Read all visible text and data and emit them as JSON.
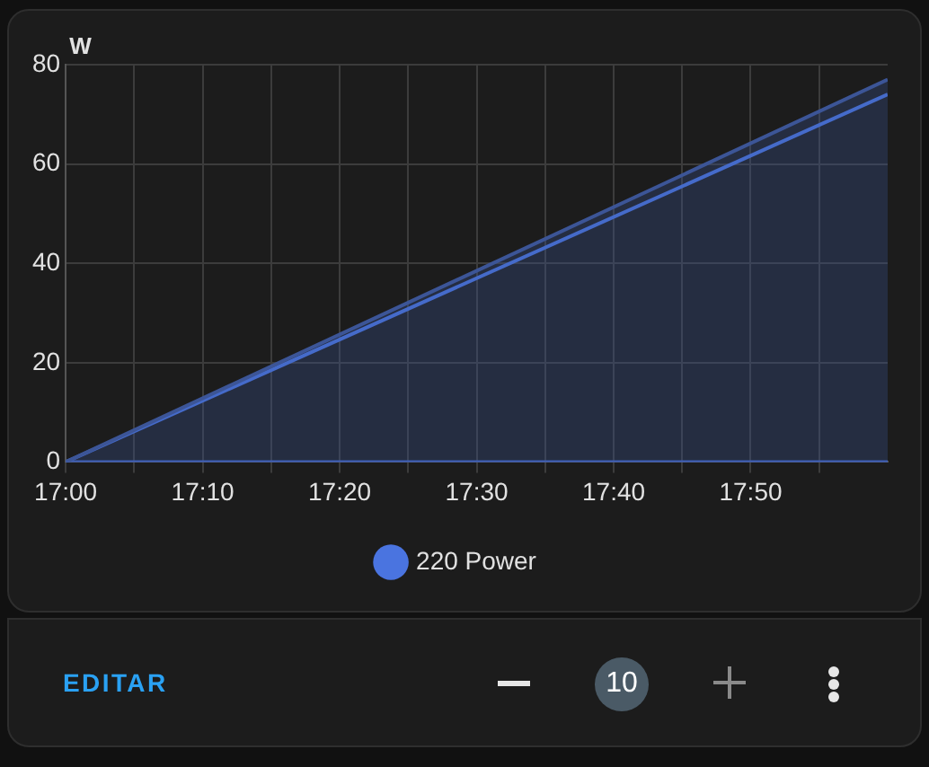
{
  "chart_data": {
    "type": "line",
    "ylabel": "W",
    "x": [
      17,
      18
    ],
    "series": [
      {
        "type": "area",
        "color": "#3c5597",
        "values": [
          0,
          77
        ]
      },
      {
        "name": "220 Power",
        "color": "#4a74e0",
        "values": [
          0,
          74
        ]
      },
      {
        "color": "#3f63c8",
        "values": [
          0,
          0
        ]
      }
    ],
    "xlim": [
      17,
      18
    ],
    "xticks": [
      {
        "value": 17,
        "label": "17:00"
      },
      {
        "value": 17.0833,
        "label": null
      },
      {
        "value": 17.1667,
        "label": "17:10"
      },
      {
        "value": 17.25,
        "label": null
      },
      {
        "value": 17.3333,
        "label": "17:20"
      },
      {
        "value": 17.4167,
        "label": null
      },
      {
        "value": 17.5,
        "label": "17:30"
      },
      {
        "value": 17.5833,
        "label": null
      },
      {
        "value": 17.6667,
        "label": "17:40"
      },
      {
        "value": 17.75,
        "label": null
      },
      {
        "value": 17.8333,
        "label": "17:50"
      },
      {
        "value": 17.9167,
        "label": null
      }
    ],
    "ylim": [
      0,
      80
    ],
    "yticks": [
      0,
      20,
      40,
      60,
      80
    ],
    "grid": true,
    "legend": "bottom",
    "marker": "none",
    "line_style": "solid",
    "annotations": [
      "EDITAR",
      "10"
    ]
  }
}
